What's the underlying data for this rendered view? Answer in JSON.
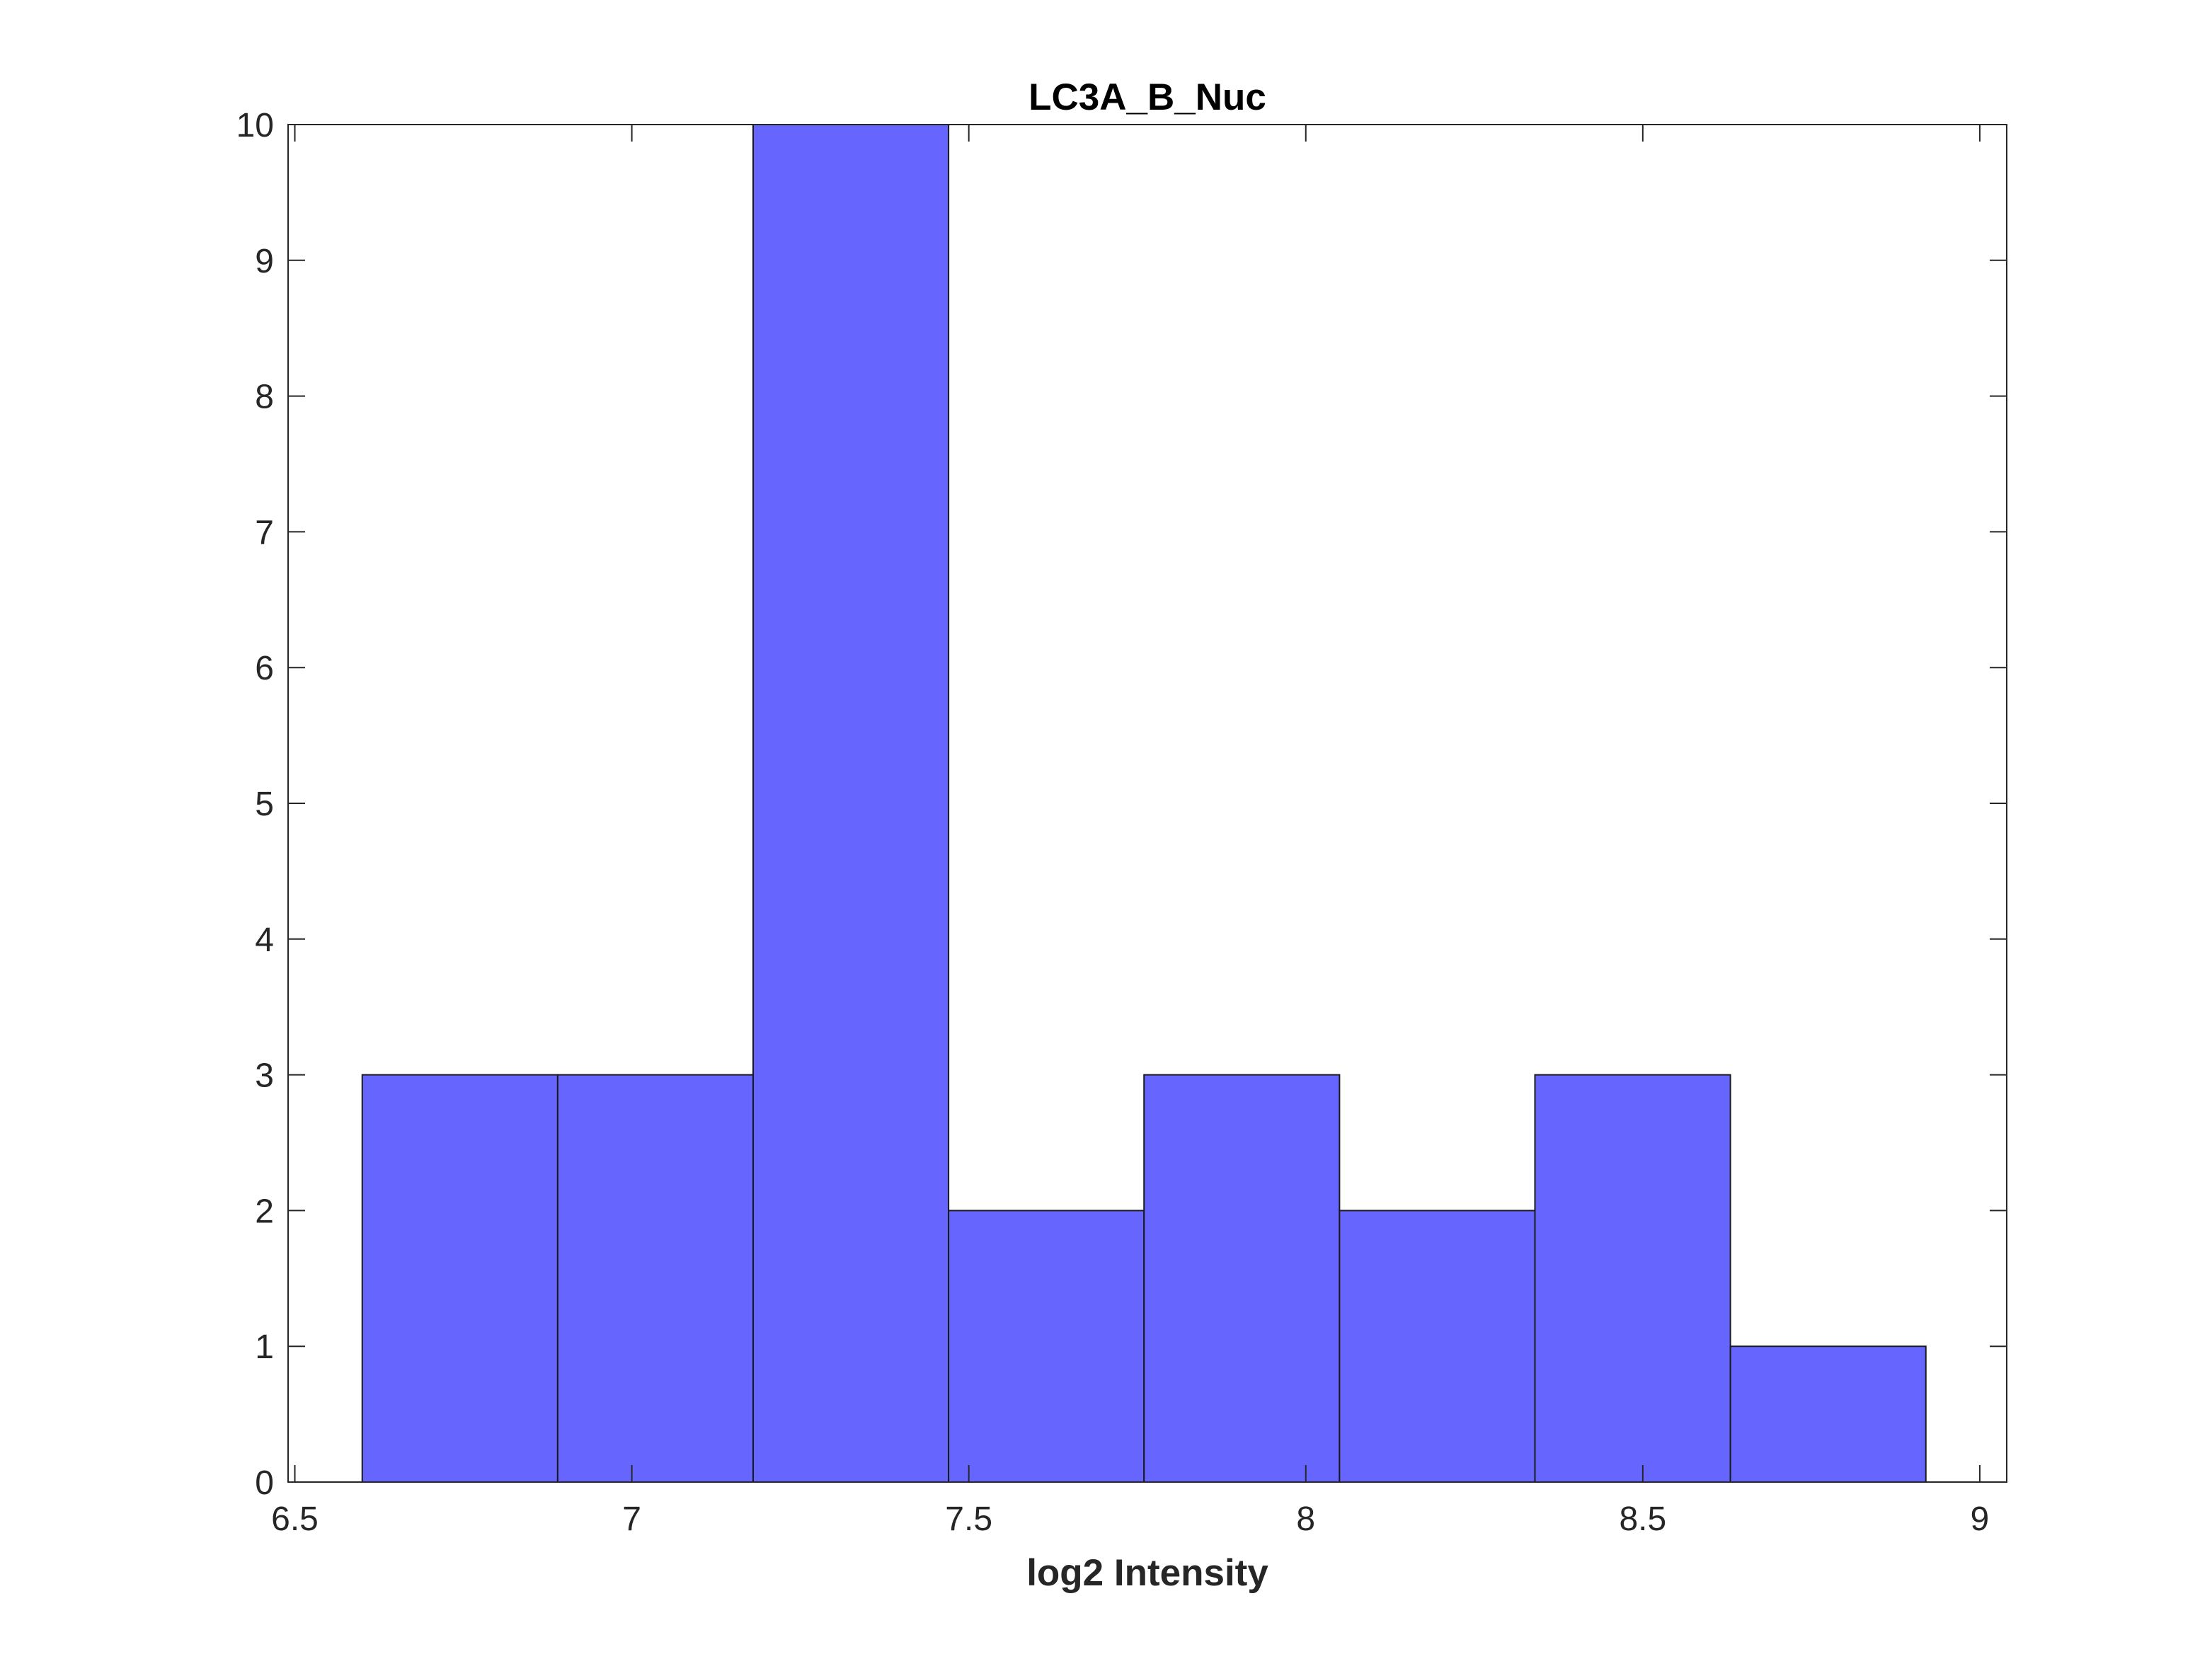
{
  "chart_data": {
    "type": "bar",
    "title": "LC3A_B_Nuc",
    "xlabel": "log2 Intensity",
    "ylabel": "",
    "bin_edges": [
      6.6,
      6.89,
      7.18,
      7.47,
      7.76,
      8.05,
      8.34,
      8.63,
      8.92
    ],
    "values": [
      3,
      3,
      10,
      2,
      3,
      2,
      3,
      1
    ],
    "xlim": [
      6.49,
      9.04
    ],
    "ylim": [
      0,
      10
    ],
    "xticks": [
      6.5,
      7,
      7.5,
      8,
      8.5,
      9
    ],
    "xtick_labels": [
      "6.5",
      "7",
      "7.5",
      "8",
      "8.5",
      "9"
    ],
    "yticks": [
      0,
      1,
      2,
      3,
      4,
      5,
      6,
      7,
      8,
      9,
      10
    ],
    "ytick_labels": [
      "0",
      "1",
      "2",
      "3",
      "4",
      "5",
      "6",
      "7",
      "8",
      "9",
      "10"
    ],
    "bar_color": "#6666ff",
    "edge_color": "#1a1a1a",
    "grid": false,
    "legend": "none"
  }
}
